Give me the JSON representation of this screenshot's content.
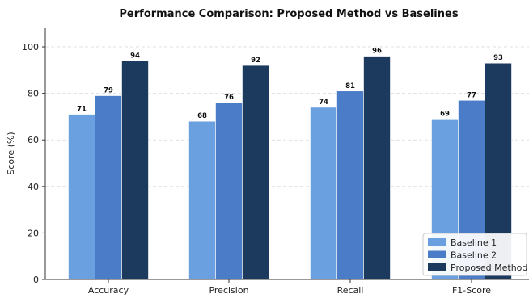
{
  "chart_data": {
    "type": "bar",
    "title": "Performance Comparison: Proposed Method vs Baselines",
    "xlabel": "",
    "ylabel": "Score (%)",
    "ylim": [
      0,
      108
    ],
    "yticks": [
      0,
      20,
      40,
      60,
      80,
      100
    ],
    "grid": true,
    "legend_position": "bottom-right",
    "categories": [
      "Accuracy",
      "Precision",
      "Recall",
      "F1-Score"
    ],
    "series": [
      {
        "name": "Baseline 1",
        "color": "#6A9FE0",
        "values": [
          71,
          68,
          74,
          69
        ]
      },
      {
        "name": "Baseline 2",
        "color": "#4A7CC8",
        "values": [
          79,
          76,
          81,
          77
        ]
      },
      {
        "name": "Proposed Method",
        "color": "#1B3A5E",
        "values": [
          94,
          92,
          96,
          93
        ]
      }
    ]
  }
}
